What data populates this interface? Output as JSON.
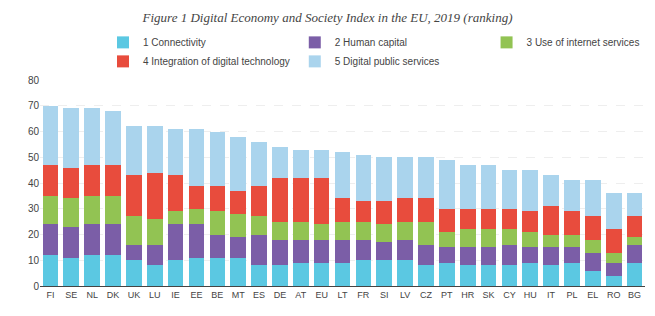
{
  "chart_data": {
    "type": "bar",
    "stacked": true,
    "title": "Figure 1 Digital Economy and Society Index in the EU, 2019 (ranking)",
    "categories": [
      "FI",
      "SE",
      "NL",
      "DK",
      "UK",
      "LU",
      "IE",
      "EE",
      "BE",
      "MT",
      "ES",
      "DE",
      "AT",
      "EU",
      "LT",
      "FR",
      "SI",
      "LV",
      "CZ",
      "PT",
      "HR",
      "SK",
      "CY",
      "HU",
      "IT",
      "PL",
      "EL",
      "RO",
      "BG"
    ],
    "series": [
      {
        "name": "1 Connectivity",
        "color": "#5bc8e2",
        "values": [
          12,
          11,
          12,
          12,
          10,
          8,
          10,
          11,
          11,
          11,
          8,
          8,
          9,
          9,
          9,
          10,
          10,
          10,
          8,
          9,
          8,
          8,
          8,
          9,
          8,
          9,
          6,
          4,
          9
        ]
      },
      {
        "name": "2 Human capital",
        "color": "#7b5ea7",
        "values": [
          12,
          12,
          12,
          12,
          6,
          8,
          14,
          13,
          9,
          8,
          12,
          10,
          9,
          9,
          9,
          8,
          7,
          8,
          8,
          6,
          7,
          7,
          8,
          6,
          7,
          6,
          7,
          5,
          7
        ]
      },
      {
        "name": "3 Use of internet services",
        "color": "#92c353",
        "values": [
          11,
          11,
          11,
          11,
          11,
          10,
          5,
          6,
          9,
          9,
          7,
          7,
          7,
          6,
          7,
          7,
          7,
          7,
          9,
          6,
          7,
          7,
          6,
          6,
          5,
          5,
          5,
          4,
          3
        ]
      },
      {
        "name": "4 Integration of digital technology",
        "color": "#e84c3d",
        "values": [
          12,
          12,
          12,
          12,
          16,
          18,
          14,
          9,
          10,
          9,
          12,
          17,
          17,
          18,
          9,
          8,
          9,
          9,
          9,
          9,
          8,
          8,
          8,
          8,
          11,
          9,
          9,
          9,
          8
        ]
      },
      {
        "name": "5 Digital public services",
        "color": "#aad4ed",
        "values": [
          23,
          23,
          22,
          21,
          19,
          18,
          18,
          22,
          21,
          21,
          17,
          12,
          11,
          11,
          18,
          18,
          17,
          16,
          16,
          19,
          17,
          17,
          15,
          16,
          12,
          12,
          14,
          14,
          9
        ]
      }
    ],
    "ylim": [
      0,
      80
    ],
    "yticks": [
      0,
      10,
      20,
      30,
      40,
      50,
      60,
      70,
      80
    ],
    "grid": true,
    "legend": "upper right"
  }
}
